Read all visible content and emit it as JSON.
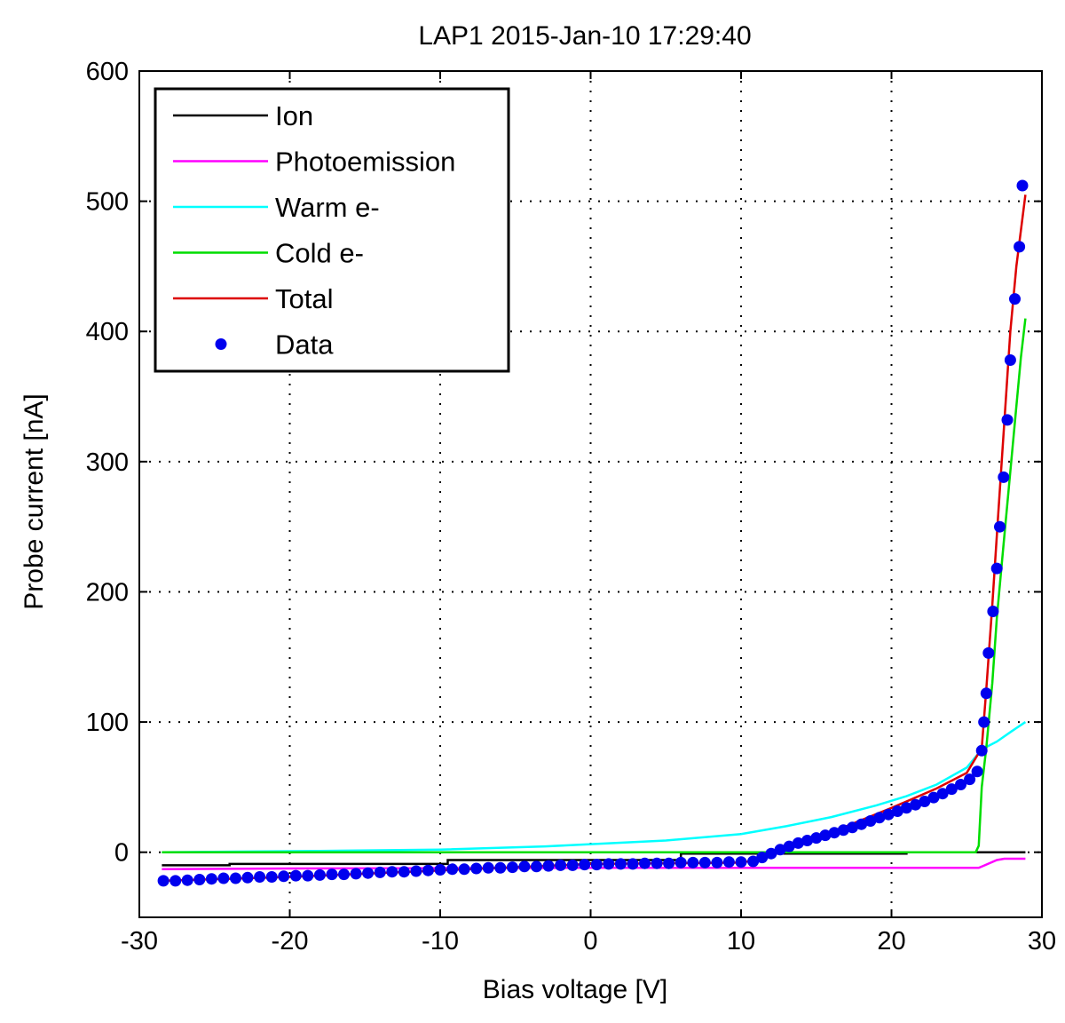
{
  "chart_data": {
    "type": "line",
    "title": "LAP1  2015-Jan-10  17:29:40",
    "xlabel": "Bias voltage [V]",
    "ylabel": "Probe current [nA]",
    "xlim": [
      -30,
      30
    ],
    "ylim": [
      -50,
      600
    ],
    "xticks": [
      -30,
      -20,
      -10,
      0,
      10,
      20,
      30
    ],
    "yticks": [
      0,
      100,
      200,
      300,
      400,
      500,
      600
    ],
    "grid": true,
    "legend_position": "top-left",
    "series": [
      {
        "name": "Ion",
        "color": "#000000",
        "style": "line",
        "x": [
          -28.5,
          -24,
          -24,
          -9.5,
          -9.5,
          6,
          6,
          21,
          21,
          27,
          28.9
        ],
        "y": [
          -10,
          -10,
          -9,
          -9,
          -6,
          -6,
          -1,
          -1,
          0,
          0,
          0
        ]
      },
      {
        "name": "Photoemission",
        "color": "#ff00ff",
        "style": "line",
        "x": [
          -28.5,
          -20,
          -10,
          0,
          10,
          20,
          25.8,
          26.2,
          27,
          27.5,
          28.9
        ],
        "y": [
          -13,
          -12.5,
          -12.2,
          -12,
          -12,
          -12,
          -12,
          -10,
          -6,
          -5,
          -5
        ]
      },
      {
        "name": "Warm e-",
        "color": "#00ffff",
        "style": "line",
        "x": [
          -28.5,
          -18,
          -10,
          -3,
          5,
          10,
          13,
          16,
          19,
          21,
          23,
          25,
          26,
          27,
          28,
          28.9
        ],
        "y": [
          0,
          1,
          2,
          4.5,
          9,
          14,
          20,
          27,
          36,
          43,
          52,
          65,
          79,
          85,
          93,
          100
        ]
      },
      {
        "name": "Cold e-",
        "color": "#00dd00",
        "style": "line",
        "x": [
          -28.5,
          0,
          25.6,
          25.8,
          26,
          26.3,
          26.7,
          27,
          27.4,
          27.8,
          28.2,
          28.6,
          28.9
        ],
        "y": [
          0,
          0,
          0,
          5,
          50,
          80,
          130,
          180,
          230,
          280,
          330,
          380,
          410
        ]
      },
      {
        "name": "Total",
        "color": "#dd0000",
        "style": "line",
        "x": [
          -28.5,
          -20,
          -10,
          0,
          10,
          11.5,
          14,
          17,
          20,
          23,
          25,
          26,
          26.3,
          26.7,
          27.1,
          27.5,
          27.9,
          28.3,
          28.9
        ],
        "y": [
          -22,
          -19,
          -14,
          -9,
          -8,
          -5,
          7,
          20,
          34,
          49,
          61,
          80,
          125,
          190,
          260,
          330,
          400,
          450,
          505
        ]
      },
      {
        "name": "Data",
        "color": "#0000ee",
        "style": "marker",
        "x": [
          -28.4,
          -27.6,
          -26.8,
          -26.0,
          -25.2,
          -24.4,
          -23.6,
          -22.8,
          -22.0,
          -21.2,
          -20.4,
          -19.6,
          -18.8,
          -18.0,
          -17.2,
          -16.4,
          -15.6,
          -14.8,
          -14.0,
          -13.2,
          -12.4,
          -11.6,
          -10.8,
          -10.0,
          -9.2,
          -8.4,
          -7.6,
          -6.8,
          -6.0,
          -5.2,
          -4.4,
          -3.6,
          -2.8,
          -2.0,
          -1.2,
          -0.4,
          0.4,
          1.2,
          2.0,
          2.8,
          3.6,
          4.4,
          5.2,
          6.0,
          6.8,
          7.6,
          8.4,
          9.2,
          10.0,
          10.8,
          11.4,
          12.0,
          12.6,
          13.2,
          13.8,
          14.4,
          15.0,
          15.6,
          16.2,
          16.8,
          17.4,
          18.0,
          18.6,
          19.2,
          19.8,
          20.4,
          21.0,
          21.6,
          22.2,
          22.8,
          23.4,
          24.0,
          24.6,
          25.2,
          25.7,
          26.0,
          26.15,
          26.3,
          26.45,
          26.75,
          27.0,
          27.2,
          27.45,
          27.7,
          27.9,
          28.2,
          28.5,
          28.7
        ],
        "y": [
          -22,
          -22,
          -21.5,
          -21,
          -20.5,
          -20,
          -20,
          -19.5,
          -19,
          -19,
          -18.5,
          -18,
          -18,
          -17.5,
          -17,
          -17,
          -16.5,
          -16,
          -15.5,
          -15,
          -15,
          -14.5,
          -14,
          -13.5,
          -13,
          -13,
          -12.5,
          -12,
          -12,
          -11.5,
          -11,
          -11,
          -10.5,
          -10,
          -10,
          -9.5,
          -9.5,
          -9,
          -9,
          -9,
          -8.5,
          -8.5,
          -8.5,
          -8,
          -8,
          -8,
          -8,
          -7.5,
          -7.5,
          -7,
          -4,
          -1,
          2,
          4.5,
          7,
          9,
          11,
          13,
          15,
          17,
          19,
          21.5,
          24,
          26.5,
          29,
          31.5,
          34,
          36.5,
          39,
          42,
          45,
          48.5,
          52,
          56,
          62,
          78,
          100,
          122,
          153,
          185,
          218,
          250,
          288,
          332,
          378,
          425,
          465,
          512
        ]
      }
    ]
  }
}
